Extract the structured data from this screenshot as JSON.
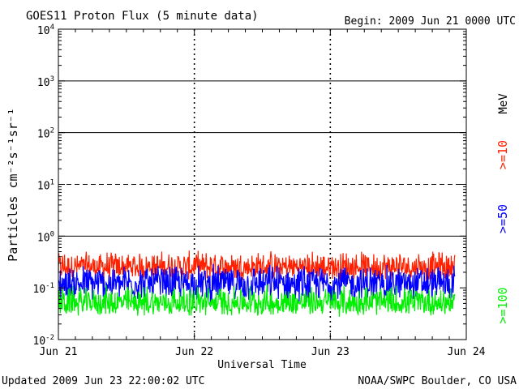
{
  "chart_data": {
    "type": "line",
    "title": "GOES11 Proton Flux (5 minute data)",
    "begin_label": "Begin: 2009 Jun 21 0000 UTC",
    "xlabel": "Universal Time",
    "ylabel": "Particles cm⁻²s⁻¹sr⁻¹",
    "y_scale": "log",
    "ylim": [
      0.01,
      10000
    ],
    "y_ticks": [
      {
        "base": "10",
        "exp": "-2",
        "value": 0.01
      },
      {
        "base": "10",
        "exp": "-1",
        "value": 0.1
      },
      {
        "base": "10",
        "exp": "0",
        "value": 1
      },
      {
        "base": "10",
        "exp": "1",
        "value": 10
      },
      {
        "base": "10",
        "exp": "2",
        "value": 100
      },
      {
        "base": "10",
        "exp": "3",
        "value": 1000
      },
      {
        "base": "10",
        "exp": "4",
        "value": 10000
      }
    ],
    "x_range": [
      "2009-06-21T00:00",
      "2009-06-24T00:00"
    ],
    "x_tick_labels": [
      "Jun 21",
      "Jun 22",
      "Jun 23",
      "Jun 24"
    ],
    "data_end": "2009-06-23T22:00",
    "energy_unit": "MeV",
    "reference_lines": [
      {
        "value": 1,
        "style": "solid"
      },
      {
        "value": 10,
        "style": "dashed"
      },
      {
        "value": 100,
        "style": "solid"
      },
      {
        "value": 1000,
        "style": "solid"
      }
    ],
    "series": [
      {
        "name": ">=10",
        "color": "#ff2000",
        "typical": 0.25,
        "range": [
          0.13,
          0.55
        ]
      },
      {
        "name": ">=50",
        "color": "#0000ff",
        "typical": 0.12,
        "range": [
          0.05,
          0.3
        ]
      },
      {
        "name": ">=100",
        "color": "#00ee00",
        "typical": 0.05,
        "range": [
          0.027,
          0.12
        ]
      }
    ]
  },
  "footer": {
    "updated": "Updated 2009 Jun 23 22:00:02 UTC",
    "source": "NOAA/SWPC Boulder, CO USA"
  }
}
